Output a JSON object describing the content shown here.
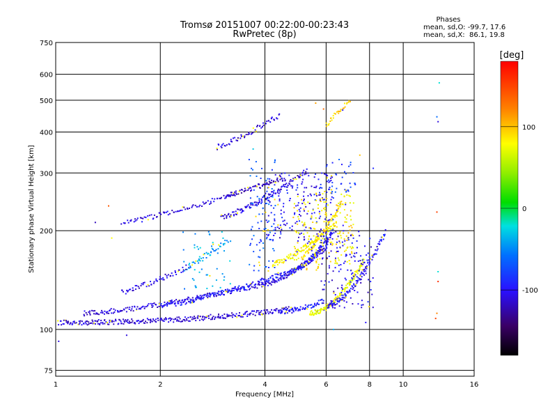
{
  "chart_data": {
    "type": "scatter",
    "title": "Tromsø 20151007 00:22:00-00:23:43",
    "subtitle": "RwPretec (8p)",
    "phases_box": {
      "title": "Phases",
      "line_o": "mean, sd,O: -99.7, 17.6",
      "line_x": "mean, sd,X:  86.1, 19.8"
    },
    "xlabel": "Frequency [MHz]",
    "ylabel": "Stationary phase Virtual Height [km]",
    "x_scale": "log",
    "y_scale": "log",
    "xlim": [
      1,
      16
    ],
    "ylim": [
      72,
      750
    ],
    "x_ticks": [
      "1",
      "2",
      "4",
      "6",
      "8",
      "10",
      "16"
    ],
    "x_tick_values": [
      1,
      2,
      4,
      6,
      8,
      10,
      16
    ],
    "y_ticks": [
      "75",
      "100",
      "200",
      "300",
      "400",
      "500",
      "600",
      "750"
    ],
    "y_tick_values": [
      75,
      100,
      200,
      300,
      400,
      500,
      600,
      750
    ],
    "grid": true,
    "colorbar": {
      "label": "[deg]",
      "min": -180,
      "max": 180,
      "ticks": [
        "100",
        "0",
        "-100"
      ],
      "tick_values": [
        100,
        0,
        -100
      ]
    },
    "traces": [
      {
        "x0": 1.02,
        "x1": 4.9,
        "y0": 105,
        "y1": 116,
        "curv": 2.2,
        "phase": -112,
        "pts": 320
      },
      {
        "x0": 4.4,
        "x1": 5.9,
        "y0": 113,
        "y1": 122,
        "curv": 1.5,
        "phase": -95,
        "pts": 60
      },
      {
        "x0": 1.2,
        "x1": 3.9,
        "y0": 112,
        "y1": 137,
        "curv": 1.4,
        "phase": -110,
        "pts": 190
      },
      {
        "x0": 3.9,
        "x1": 6.0,
        "y0": 137,
        "y1": 178,
        "curv": 1.5,
        "phase": -108,
        "pts": 130
      },
      {
        "x0": 2.0,
        "x1": 4.7,
        "y0": 118,
        "y1": 150,
        "curv": 1.3,
        "phase": -95,
        "pts": 150
      },
      {
        "x0": 4.7,
        "x1": 6.3,
        "y0": 150,
        "y1": 200,
        "curv": 1.6,
        "phase": -100,
        "pts": 110
      },
      {
        "x0": 5.4,
        "x1": 7.7,
        "y0": 112,
        "y1": 162,
        "curv": 1.8,
        "phase": 72,
        "pts": 150
      },
      {
        "x0": 6.0,
        "x1": 8.9,
        "y0": 118,
        "y1": 198,
        "curv": 1.7,
        "phase": -100,
        "pts": 120
      },
      {
        "x0": 4.2,
        "x1": 6.4,
        "y0": 158,
        "y1": 210,
        "curv": 1.3,
        "phase": 82,
        "pts": 110
      },
      {
        "x0": 5.1,
        "x1": 6.7,
        "y0": 165,
        "y1": 245,
        "curv": 1.2,
        "phase": 90,
        "pts": 80
      },
      {
        "x0": 2.4,
        "x1": 3.1,
        "y0": 155,
        "y1": 185,
        "curv": 1.0,
        "phase": -45,
        "pts": 40
      },
      {
        "x0": 1.55,
        "x1": 2.4,
        "y0": 130,
        "y1": 155,
        "curv": 1.2,
        "phase": -108,
        "pts": 60
      },
      {
        "x0": 3.0,
        "x1": 5.3,
        "y0": 220,
        "y1": 305,
        "curv": 1.3,
        "phase": -110,
        "pts": 120
      },
      {
        "x0": 3.1,
        "x1": 4.6,
        "y0": 255,
        "y1": 290,
        "curv": 1.0,
        "phase": -120,
        "pts": 70
      },
      {
        "x0": 1.55,
        "x1": 3.3,
        "y0": 210,
        "y1": 258,
        "curv": 1.1,
        "phase": -108,
        "pts": 90
      },
      {
        "x0": 2.9,
        "x1": 4.4,
        "y0": 360,
        "y1": 450,
        "curv": 1.2,
        "phase": -110,
        "pts": 60
      },
      {
        "x0": 6.0,
        "x1": 7.0,
        "y0": 420,
        "y1": 500,
        "curv": 1.0,
        "phase": 92,
        "pts": 30
      }
    ],
    "clusters": [
      {
        "x0": 4.0,
        "x1": 6.3,
        "y0": 185,
        "y1": 300,
        "phase": -100,
        "pts": 200
      },
      {
        "x0": 4.8,
        "x1": 7.2,
        "y0": 150,
        "y1": 260,
        "phase": 85,
        "pts": 210
      },
      {
        "x0": 5.8,
        "x1": 8.2,
        "y0": 115,
        "y1": 200,
        "phase": -105,
        "pts": 140
      },
      {
        "x0": 2.3,
        "x1": 3.2,
        "y0": 130,
        "y1": 200,
        "phase": -40,
        "pts": 50
      },
      {
        "x0": 3.6,
        "x1": 4.3,
        "y0": 150,
        "y1": 330,
        "phase": -70,
        "pts": 90
      },
      {
        "x0": 6.0,
        "x1": 7.3,
        "y0": 260,
        "y1": 330,
        "phase": -80,
        "pts": 40
      }
    ],
    "scattered": [
      {
        "x": 12.7,
        "y": 565,
        "phase": -20
      },
      {
        "x": 12.5,
        "y": 445,
        "phase": -60
      },
      {
        "x": 12.6,
        "y": 430,
        "phase": -110
      },
      {
        "x": 12.5,
        "y": 228,
        "phase": 150
      },
      {
        "x": 12.6,
        "y": 150,
        "phase": -20
      },
      {
        "x": 12.6,
        "y": 140,
        "phase": 160
      },
      {
        "x": 12.5,
        "y": 112,
        "phase": 120
      },
      {
        "x": 12.4,
        "y": 108,
        "phase": 150
      },
      {
        "x": 1.3,
        "y": 212,
        "phase": -120
      },
      {
        "x": 1.42,
        "y": 238,
        "phase": 140
      },
      {
        "x": 1.45,
        "y": 190,
        "phase": 80
      },
      {
        "x": 1.6,
        "y": 96,
        "phase": -110
      },
      {
        "x": 1.02,
        "y": 92,
        "phase": -110
      },
      {
        "x": 5.6,
        "y": 490,
        "phase": 110
      },
      {
        "x": 5.9,
        "y": 470,
        "phase": 130
      },
      {
        "x": 7.5,
        "y": 340,
        "phase": 100
      },
      {
        "x": 8.2,
        "y": 310,
        "phase": -90
      },
      {
        "x": 7.8,
        "y": 105,
        "phase": -100
      },
      {
        "x": 6.3,
        "y": 100,
        "phase": -40
      },
      {
        "x": 3.7,
        "y": 355,
        "phase": -30
      }
    ]
  }
}
